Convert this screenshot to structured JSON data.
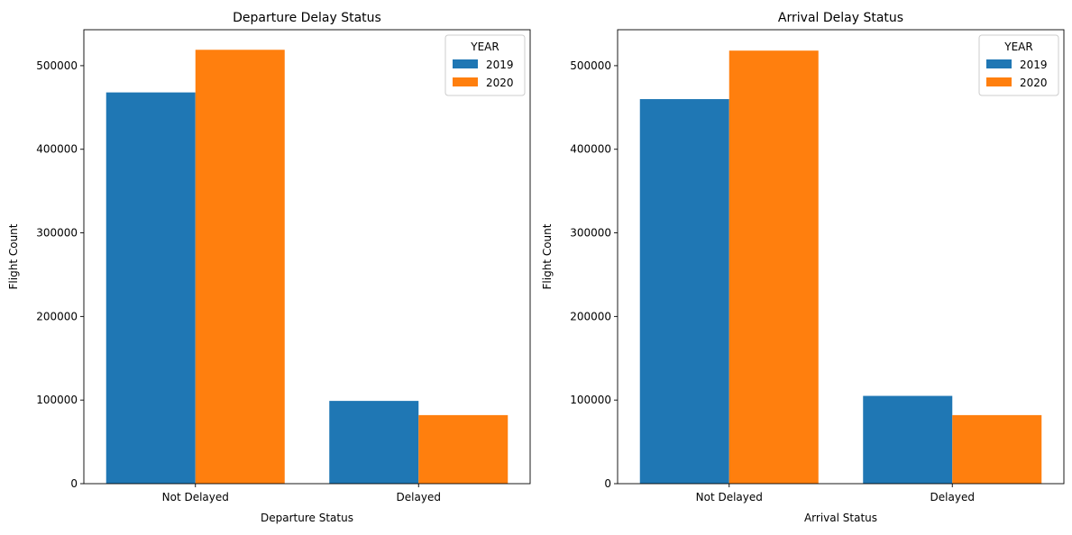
{
  "chart_data": [
    {
      "type": "bar",
      "title": "Departure Delay Status",
      "xlabel": "Departure Status",
      "ylabel": "Flight Count",
      "categories": [
        "Not Delayed",
        "Delayed"
      ],
      "series": [
        {
          "name": "2019",
          "values": [
            468000,
            99000
          ],
          "color": "#1f77b4"
        },
        {
          "name": "2020",
          "values": [
            519000,
            82000
          ],
          "color": "#ff7f0e"
        }
      ],
      "ylim": [
        0,
        543000
      ],
      "yticks": [
        0,
        100000,
        200000,
        300000,
        400000,
        500000
      ],
      "legend": {
        "title": "YEAR",
        "placement": "top-right"
      },
      "grid": false
    },
    {
      "type": "bar",
      "title": "Arrival Delay Status",
      "xlabel": "Arrival Status",
      "ylabel": "Flight Count",
      "categories": [
        "Not Delayed",
        "Delayed"
      ],
      "series": [
        {
          "name": "2019",
          "values": [
            460000,
            105000
          ],
          "color": "#1f77b4"
        },
        {
          "name": "2020",
          "values": [
            518000,
            82000
          ],
          "color": "#ff7f0e"
        }
      ],
      "ylim": [
        0,
        543000
      ],
      "yticks": [
        0,
        100000,
        200000,
        300000,
        400000,
        500000
      ],
      "legend": {
        "title": "YEAR",
        "placement": "top-right"
      },
      "grid": false
    }
  ]
}
